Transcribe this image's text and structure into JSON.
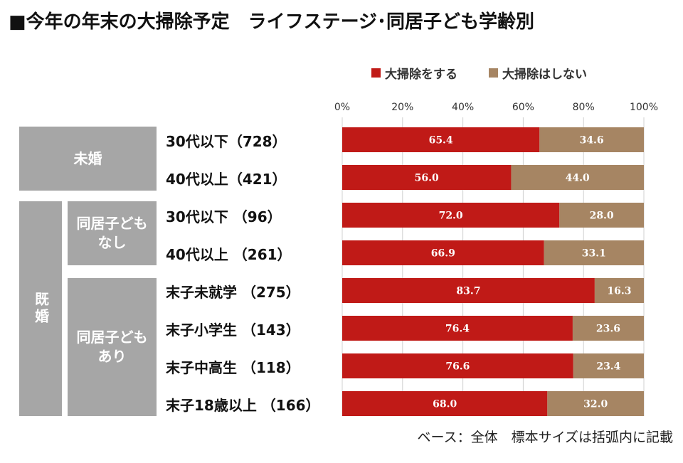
{
  "title": "■今年の年末の大掃除予定　ライフステージ･同居子ども学齢別",
  "legend": [
    {
      "label": "大掃除をする",
      "color": "#c01a17"
    },
    {
      "label": "大掃除はしない",
      "color": "#a68563"
    }
  ],
  "groups": {
    "mikon": "未婚",
    "kikon": "既婚",
    "nashi": "同居子ども\nなし",
    "ari": "同居子ども\nあり"
  },
  "note": "ベース：全体　標本サイズは括弧内に記載",
  "chart_data": {
    "type": "bar",
    "orientation": "horizontal",
    "stacked": true,
    "xlim": [
      0,
      100
    ],
    "x_ticks": [
      "0%",
      "20%",
      "40%",
      "60%",
      "80%",
      "100%"
    ],
    "categories": [
      "30代以下（728）",
      "40代以上（421）",
      "30代以下 （96）",
      "40代以上 （261）",
      "末子未就学 （275）",
      "末子小学生 （143）",
      "末子中高生 （118）",
      "末子18歳以上 （166）"
    ],
    "series": [
      {
        "name": "大掃除をする",
        "values": [
          65.4,
          56.0,
          72.0,
          66.9,
          83.7,
          76.4,
          76.6,
          68.0
        ],
        "labels": [
          "65.4",
          "56.0",
          "72.0",
          "66.9",
          "83.7",
          "76.4",
          "76.6",
          "68.0"
        ]
      },
      {
        "name": "大掃除はしない",
        "values": [
          34.6,
          44.0,
          28.0,
          33.1,
          16.3,
          23.6,
          23.4,
          32.0
        ],
        "labels": [
          "34.6",
          "44.0",
          "28.0",
          "33.1",
          "16.3",
          "23.6",
          "23.4",
          "32.0"
        ]
      }
    ]
  }
}
